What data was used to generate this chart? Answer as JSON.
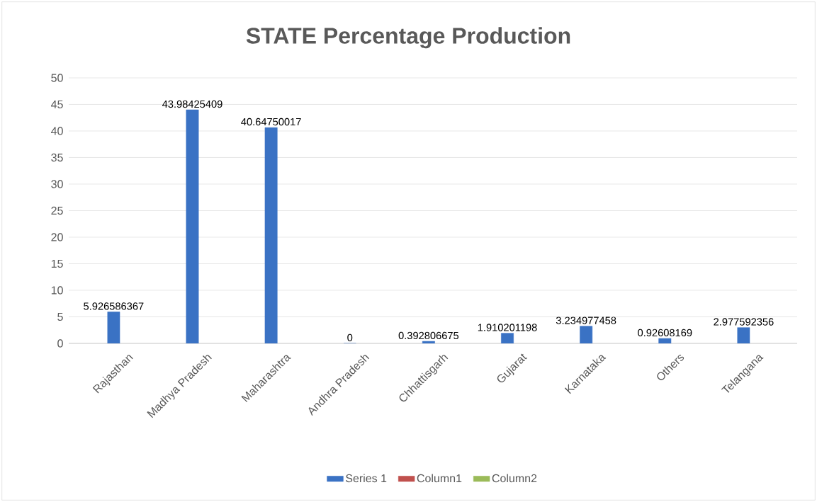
{
  "chart_data": {
    "type": "bar",
    "title": "STATE Percentage Production",
    "categories": [
      "Rajasthan",
      "Madhya Pradesh",
      "Maharashtra",
      "Andhra Pradesh",
      "Chhattisgarh",
      "Gujarat",
      "Karnataka",
      "Others",
      "Telangana"
    ],
    "series": [
      {
        "name": "Series 1",
        "color": "#3a72c4",
        "values": [
          5.926586367,
          43.98425409,
          40.64750017,
          0,
          0.392806675,
          1.910201198,
          3.234977458,
          0.92608169,
          2.977592356
        ]
      },
      {
        "name": "Column1",
        "color": "#c0504d",
        "values": [
          null,
          null,
          null,
          null,
          null,
          null,
          null,
          null,
          null
        ]
      },
      {
        "name": "Column2",
        "color": "#9bbb59",
        "values": [
          null,
          null,
          null,
          null,
          null,
          null,
          null,
          null,
          null
        ]
      }
    ],
    "ylim": [
      0,
      50
    ],
    "yticks": [
      0,
      5,
      10,
      15,
      20,
      25,
      30,
      35,
      40,
      45,
      50
    ],
    "grid": "y",
    "legend": "bottom",
    "data_labels": true
  }
}
